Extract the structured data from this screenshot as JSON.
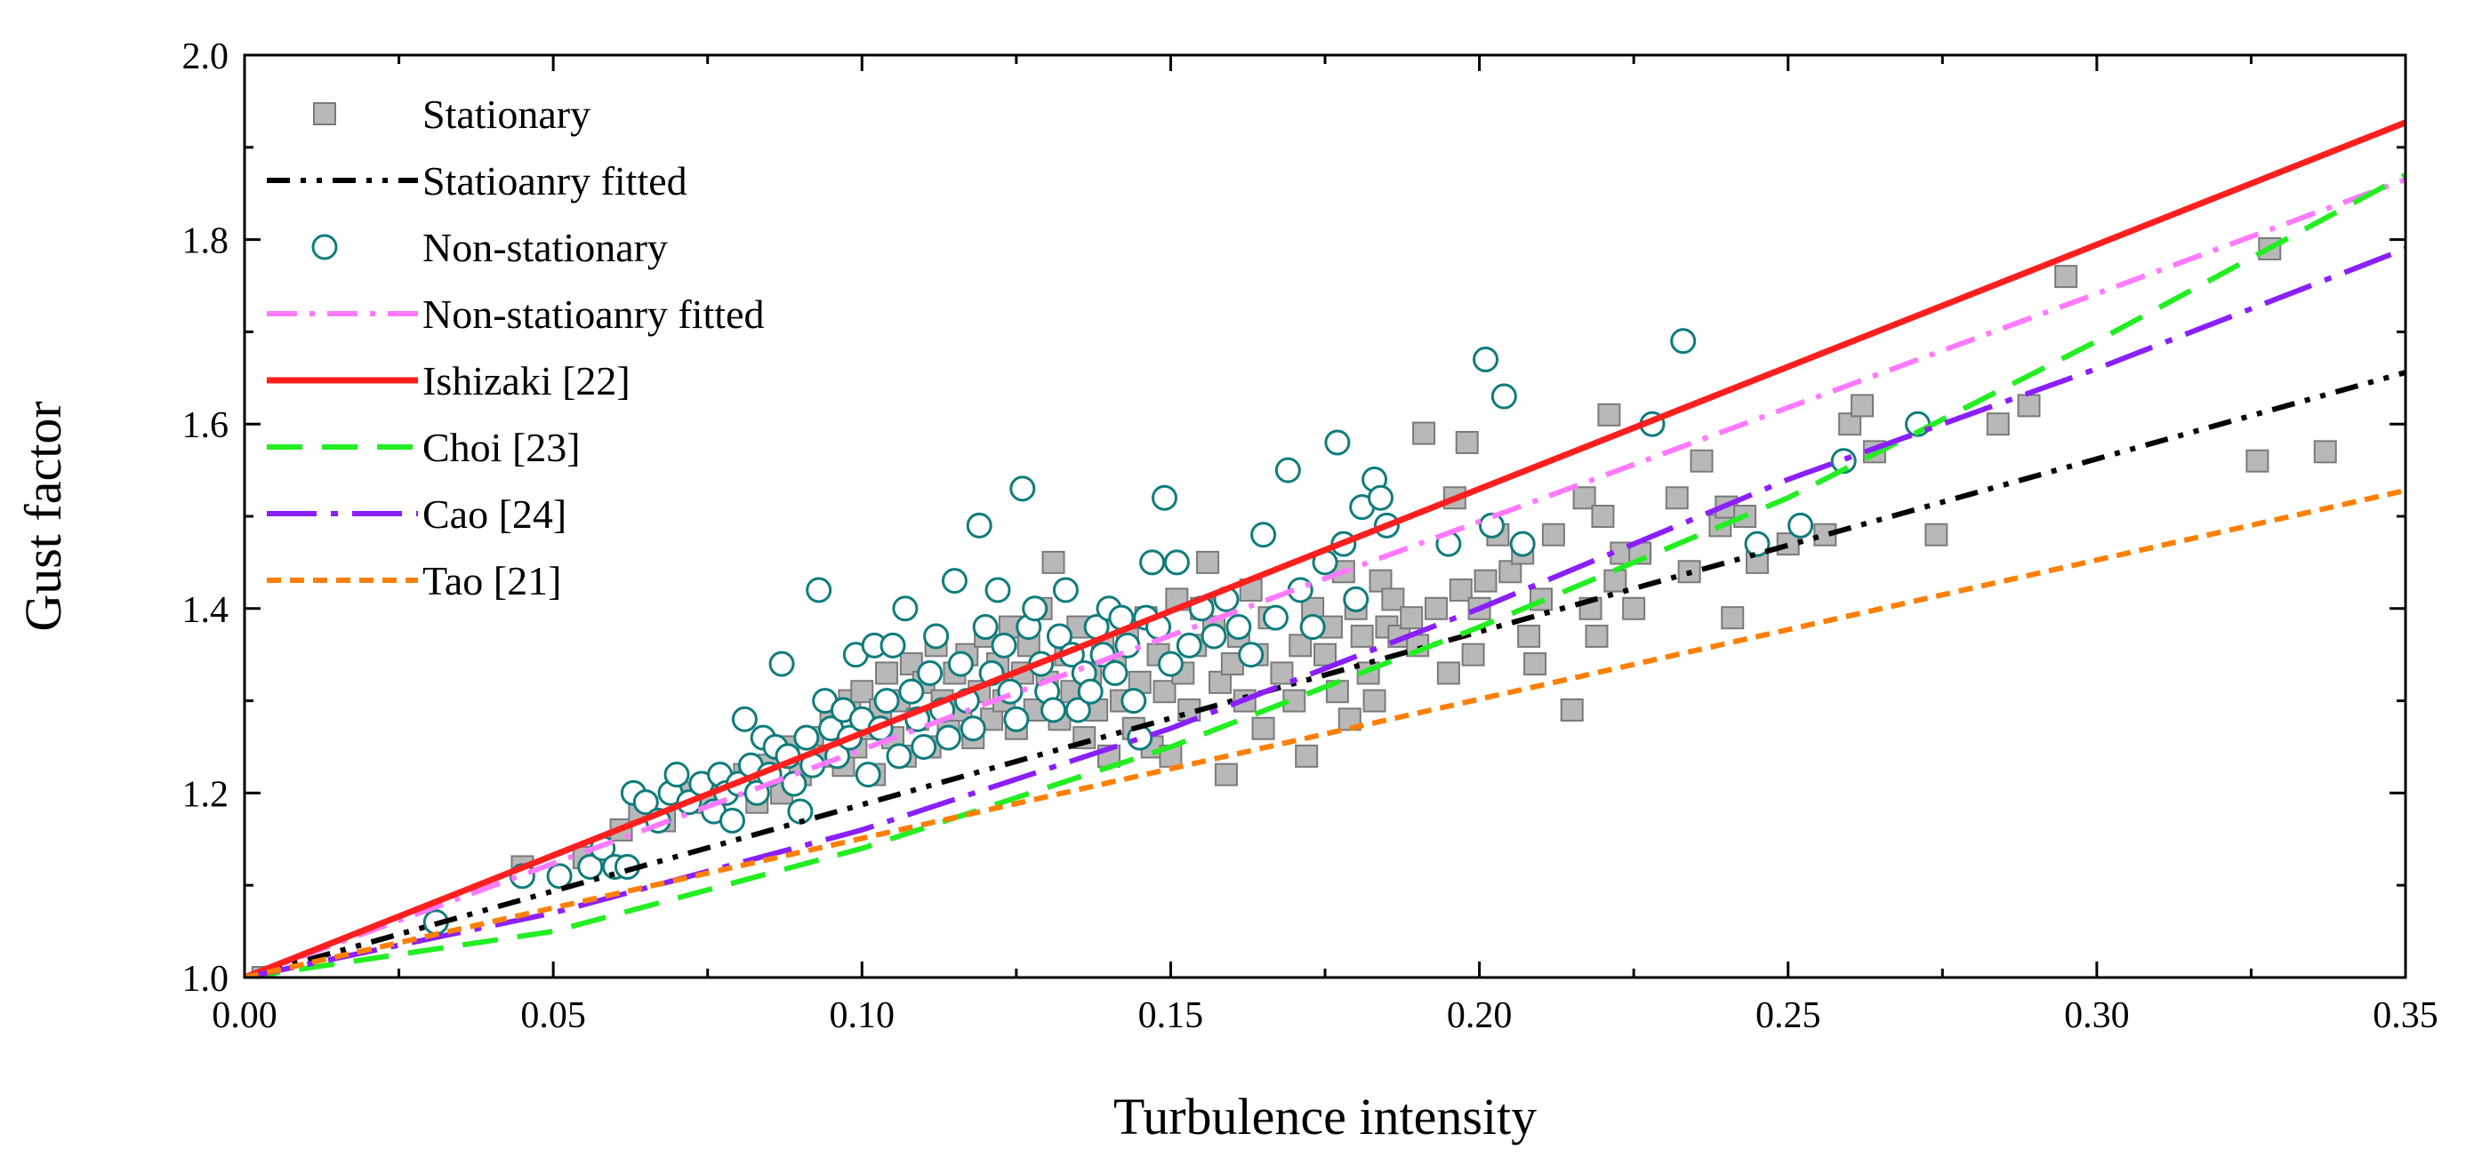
{
  "chart_data": {
    "type": "scatter",
    "title": "",
    "xlabel": "Turbulence intensity",
    "ylabel": "Gust factor",
    "xlim": [
      0,
      0.35
    ],
    "ylim": [
      1.0,
      2.0
    ],
    "x_ticks": [
      "0.00",
      "0.05",
      "0.10",
      "0.15",
      "0.20",
      "0.25",
      "0.30",
      "0.35"
    ],
    "y_ticks": [
      "1.0",
      "1.2",
      "1.4",
      "1.6",
      "1.8",
      "2.0"
    ],
    "grid": false,
    "legend_position": "top-left",
    "series": [
      {
        "name": "Stationary",
        "kind": "scatter",
        "marker": "square",
        "color": "#b8b8b8",
        "points": [
          [
            0.003,
            1.0
          ],
          [
            0.045,
            1.12
          ],
          [
            0.055,
            1.13
          ],
          [
            0.061,
            1.16
          ],
          [
            0.064,
            1.18
          ],
          [
            0.068,
            1.17
          ],
          [
            0.072,
            1.2
          ],
          [
            0.075,
            1.19
          ],
          [
            0.078,
            1.21
          ],
          [
            0.081,
            1.22
          ],
          [
            0.083,
            1.19
          ],
          [
            0.085,
            1.23
          ],
          [
            0.087,
            1.2
          ],
          [
            0.088,
            1.25
          ],
          [
            0.09,
            1.22
          ],
          [
            0.092,
            1.26
          ],
          [
            0.094,
            1.24
          ],
          [
            0.095,
            1.28
          ],
          [
            0.097,
            1.23
          ],
          [
            0.098,
            1.3
          ],
          [
            0.099,
            1.25
          ],
          [
            0.1,
            1.31
          ],
          [
            0.101,
            1.27
          ],
          [
            0.102,
            1.22
          ],
          [
            0.103,
            1.29
          ],
          [
            0.104,
            1.33
          ],
          [
            0.105,
            1.26
          ],
          [
            0.106,
            1.3
          ],
          [
            0.107,
            1.24
          ],
          [
            0.108,
            1.34
          ],
          [
            0.109,
            1.28
          ],
          [
            0.11,
            1.32
          ],
          [
            0.111,
            1.25
          ],
          [
            0.112,
            1.36
          ],
          [
            0.113,
            1.3
          ],
          [
            0.114,
            1.27
          ],
          [
            0.115,
            1.33
          ],
          [
            0.116,
            1.29
          ],
          [
            0.117,
            1.35
          ],
          [
            0.118,
            1.26
          ],
          [
            0.119,
            1.31
          ],
          [
            0.12,
            1.37
          ],
          [
            0.121,
            1.28
          ],
          [
            0.122,
            1.34
          ],
          [
            0.123,
            1.3
          ],
          [
            0.124,
            1.38
          ],
          [
            0.125,
            1.27
          ],
          [
            0.126,
            1.33
          ],
          [
            0.127,
            1.36
          ],
          [
            0.128,
            1.29
          ],
          [
            0.129,
            1.4
          ],
          [
            0.13,
            1.32
          ],
          [
            0.131,
            1.45
          ],
          [
            0.132,
            1.28
          ],
          [
            0.133,
            1.35
          ],
          [
            0.134,
            1.31
          ],
          [
            0.135,
            1.38
          ],
          [
            0.136,
            1.26
          ],
          [
            0.137,
            1.33
          ],
          [
            0.138,
            1.29
          ],
          [
            0.139,
            1.36
          ],
          [
            0.14,
            1.24
          ],
          [
            0.141,
            1.34
          ],
          [
            0.142,
            1.3
          ],
          [
            0.143,
            1.37
          ],
          [
            0.144,
            1.27
          ],
          [
            0.145,
            1.32
          ],
          [
            0.146,
            1.39
          ],
          [
            0.147,
            1.25
          ],
          [
            0.148,
            1.35
          ],
          [
            0.149,
            1.31
          ],
          [
            0.15,
            1.24
          ],
          [
            0.151,
            1.41
          ],
          [
            0.152,
            1.33
          ],
          [
            0.153,
            1.29
          ],
          [
            0.154,
            1.36
          ],
          [
            0.155,
            1.4
          ],
          [
            0.156,
            1.45
          ],
          [
            0.157,
            1.38
          ],
          [
            0.158,
            1.32
          ],
          [
            0.159,
            1.22
          ],
          [
            0.16,
            1.34
          ],
          [
            0.161,
            1.37
          ],
          [
            0.162,
            1.3
          ],
          [
            0.163,
            1.42
          ],
          [
            0.164,
            1.35
          ],
          [
            0.165,
            1.27
          ],
          [
            0.166,
            1.39
          ],
          [
            0.168,
            1.33
          ],
          [
            0.17,
            1.3
          ],
          [
            0.171,
            1.36
          ],
          [
            0.172,
            1.24
          ],
          [
            0.173,
            1.4
          ],
          [
            0.175,
            1.35
          ],
          [
            0.176,
            1.38
          ],
          [
            0.177,
            1.31
          ],
          [
            0.178,
            1.44
          ],
          [
            0.179,
            1.28
          ],
          [
            0.18,
            1.4
          ],
          [
            0.181,
            1.37
          ],
          [
            0.182,
            1.33
          ],
          [
            0.183,
            1.3
          ],
          [
            0.184,
            1.43
          ],
          [
            0.185,
            1.38
          ],
          [
            0.186,
            1.41
          ],
          [
            0.187,
            1.37
          ],
          [
            0.189,
            1.39
          ],
          [
            0.19,
            1.36
          ],
          [
            0.191,
            1.59
          ],
          [
            0.193,
            1.4
          ],
          [
            0.195,
            1.33
          ],
          [
            0.196,
            1.52
          ],
          [
            0.197,
            1.42
          ],
          [
            0.198,
            1.58
          ],
          [
            0.199,
            1.35
          ],
          [
            0.2,
            1.4
          ],
          [
            0.201,
            1.43
          ],
          [
            0.203,
            1.48
          ],
          [
            0.205,
            1.44
          ],
          [
            0.207,
            1.46
          ],
          [
            0.208,
            1.37
          ],
          [
            0.209,
            1.34
          ],
          [
            0.21,
            1.41
          ],
          [
            0.212,
            1.48
          ],
          [
            0.215,
            1.29
          ],
          [
            0.217,
            1.52
          ],
          [
            0.218,
            1.4
          ],
          [
            0.219,
            1.37
          ],
          [
            0.22,
            1.5
          ],
          [
            0.221,
            1.61
          ],
          [
            0.222,
            1.43
          ],
          [
            0.223,
            1.46
          ],
          [
            0.225,
            1.4
          ],
          [
            0.226,
            1.46
          ],
          [
            0.232,
            1.52
          ],
          [
            0.234,
            1.44
          ],
          [
            0.236,
            1.56
          ],
          [
            0.239,
            1.49
          ],
          [
            0.24,
            1.51
          ],
          [
            0.241,
            1.39
          ],
          [
            0.243,
            1.5
          ],
          [
            0.245,
            1.45
          ],
          [
            0.25,
            1.47
          ],
          [
            0.256,
            1.48
          ],
          [
            0.26,
            1.6
          ],
          [
            0.262,
            1.62
          ],
          [
            0.264,
            1.57
          ],
          [
            0.274,
            1.48
          ],
          [
            0.284,
            1.6
          ],
          [
            0.289,
            1.62
          ],
          [
            0.295,
            1.76
          ],
          [
            0.326,
            1.56
          ],
          [
            0.328,
            1.79
          ],
          [
            0.337,
            1.57
          ]
        ]
      },
      {
        "name": "Statioanry fitted",
        "kind": "line",
        "color": "#000000",
        "dash": "dash-dot-dot",
        "points": [
          [
            0.0,
            1.0
          ],
          [
            0.35,
            1.656
          ]
        ]
      },
      {
        "name": "Non-stationary",
        "kind": "scatter",
        "marker": "open-circle",
        "color": "#0f7c7c",
        "points": [
          [
            0.031,
            1.06
          ],
          [
            0.045,
            1.11
          ],
          [
            0.051,
            1.11
          ],
          [
            0.056,
            1.12
          ],
          [
            0.058,
            1.14
          ],
          [
            0.06,
            1.12
          ],
          [
            0.062,
            1.12
          ],
          [
            0.063,
            1.2
          ],
          [
            0.065,
            1.19
          ],
          [
            0.067,
            1.17
          ],
          [
            0.069,
            1.2
          ],
          [
            0.07,
            1.22
          ],
          [
            0.072,
            1.19
          ],
          [
            0.074,
            1.21
          ],
          [
            0.076,
            1.18
          ],
          [
            0.077,
            1.22
          ],
          [
            0.078,
            1.2
          ],
          [
            0.079,
            1.17
          ],
          [
            0.08,
            1.21
          ],
          [
            0.081,
            1.28
          ],
          [
            0.082,
            1.23
          ],
          [
            0.083,
            1.2
          ],
          [
            0.084,
            1.26
          ],
          [
            0.085,
            1.22
          ],
          [
            0.086,
            1.25
          ],
          [
            0.087,
            1.34
          ],
          [
            0.088,
            1.24
          ],
          [
            0.089,
            1.21
          ],
          [
            0.09,
            1.18
          ],
          [
            0.091,
            1.26
          ],
          [
            0.092,
            1.23
          ],
          [
            0.093,
            1.42
          ],
          [
            0.094,
            1.3
          ],
          [
            0.095,
            1.27
          ],
          [
            0.096,
            1.24
          ],
          [
            0.097,
            1.29
          ],
          [
            0.098,
            1.26
          ],
          [
            0.099,
            1.35
          ],
          [
            0.1,
            1.28
          ],
          [
            0.101,
            1.22
          ],
          [
            0.102,
            1.36
          ],
          [
            0.103,
            1.27
          ],
          [
            0.104,
            1.3
          ],
          [
            0.105,
            1.36
          ],
          [
            0.106,
            1.24
          ],
          [
            0.107,
            1.4
          ],
          [
            0.108,
            1.31
          ],
          [
            0.109,
            1.28
          ],
          [
            0.11,
            1.25
          ],
          [
            0.111,
            1.33
          ],
          [
            0.112,
            1.37
          ],
          [
            0.113,
            1.29
          ],
          [
            0.114,
            1.26
          ],
          [
            0.115,
            1.43
          ],
          [
            0.116,
            1.34
          ],
          [
            0.117,
            1.3
          ],
          [
            0.118,
            1.27
          ],
          [
            0.119,
            1.49
          ],
          [
            0.12,
            1.38
          ],
          [
            0.121,
            1.33
          ],
          [
            0.122,
            1.42
          ],
          [
            0.123,
            1.36
          ],
          [
            0.124,
            1.31
          ],
          [
            0.125,
            1.28
          ],
          [
            0.126,
            1.53
          ],
          [
            0.127,
            1.38
          ],
          [
            0.128,
            1.4
          ],
          [
            0.129,
            1.34
          ],
          [
            0.13,
            1.31
          ],
          [
            0.131,
            1.29
          ],
          [
            0.132,
            1.37
          ],
          [
            0.133,
            1.42
          ],
          [
            0.134,
            1.35
          ],
          [
            0.135,
            1.29
          ],
          [
            0.136,
            1.33
          ],
          [
            0.137,
            1.31
          ],
          [
            0.138,
            1.38
          ],
          [
            0.139,
            1.35
          ],
          [
            0.14,
            1.4
          ],
          [
            0.141,
            1.33
          ],
          [
            0.142,
            1.39
          ],
          [
            0.143,
            1.36
          ],
          [
            0.144,
            1.3
          ],
          [
            0.145,
            1.26
          ],
          [
            0.146,
            1.39
          ],
          [
            0.147,
            1.45
          ],
          [
            0.148,
            1.38
          ],
          [
            0.149,
            1.52
          ],
          [
            0.15,
            1.34
          ],
          [
            0.151,
            1.45
          ],
          [
            0.153,
            1.36
          ],
          [
            0.155,
            1.4
          ],
          [
            0.157,
            1.37
          ],
          [
            0.159,
            1.41
          ],
          [
            0.161,
            1.38
          ],
          [
            0.163,
            1.35
          ],
          [
            0.165,
            1.48
          ],
          [
            0.167,
            1.39
          ],
          [
            0.169,
            1.55
          ],
          [
            0.171,
            1.42
          ],
          [
            0.173,
            1.38
          ],
          [
            0.175,
            1.45
          ],
          [
            0.177,
            1.58
          ],
          [
            0.178,
            1.47
          ],
          [
            0.18,
            1.41
          ],
          [
            0.181,
            1.51
          ],
          [
            0.183,
            1.54
          ],
          [
            0.184,
            1.52
          ],
          [
            0.185,
            1.49
          ],
          [
            0.195,
            1.47
          ],
          [
            0.201,
            1.67
          ],
          [
            0.202,
            1.49
          ],
          [
            0.204,
            1.63
          ],
          [
            0.207,
            1.47
          ],
          [
            0.228,
            1.6
          ],
          [
            0.233,
            1.69
          ],
          [
            0.245,
            1.47
          ],
          [
            0.252,
            1.49
          ],
          [
            0.259,
            1.56
          ],
          [
            0.271,
            1.6
          ]
        ]
      },
      {
        "name": "Non-statioanry fitted",
        "kind": "line",
        "color": "#ff7aff",
        "dash": "dash-dot",
        "points": [
          [
            0.0,
            1.0
          ],
          [
            0.35,
            1.865
          ]
        ]
      },
      {
        "name": "Ishizaki [22]",
        "kind": "line",
        "color": "#ff1f1f",
        "dash": "solid",
        "points": [
          [
            0.0,
            1.0
          ],
          [
            0.35,
            1.927
          ]
        ]
      },
      {
        "name": "Choi [23]",
        "kind": "line",
        "color": "#22ee22",
        "dash": "dash",
        "points": [
          [
            0.0,
            1.0
          ],
          [
            0.05,
            1.05
          ],
          [
            0.1,
            1.14
          ],
          [
            0.15,
            1.25
          ],
          [
            0.2,
            1.38
          ],
          [
            0.25,
            1.52
          ],
          [
            0.3,
            1.69
          ],
          [
            0.35,
            1.87
          ]
        ]
      },
      {
        "name": "Cao [24]",
        "kind": "line",
        "color": "#8a1fff",
        "dash": "long-dash-dot",
        "points": [
          [
            0.0,
            1.0
          ],
          [
            0.05,
            1.07
          ],
          [
            0.1,
            1.16
          ],
          [
            0.15,
            1.27
          ],
          [
            0.2,
            1.4
          ],
          [
            0.25,
            1.54
          ],
          [
            0.3,
            1.66
          ],
          [
            0.35,
            1.79
          ]
        ]
      },
      {
        "name": "Tao [21]",
        "kind": "line",
        "color": "#ff7f00",
        "dash": "short-dash",
        "points": [
          [
            0.0,
            1.0
          ],
          [
            0.35,
            1.528
          ]
        ]
      }
    ]
  }
}
